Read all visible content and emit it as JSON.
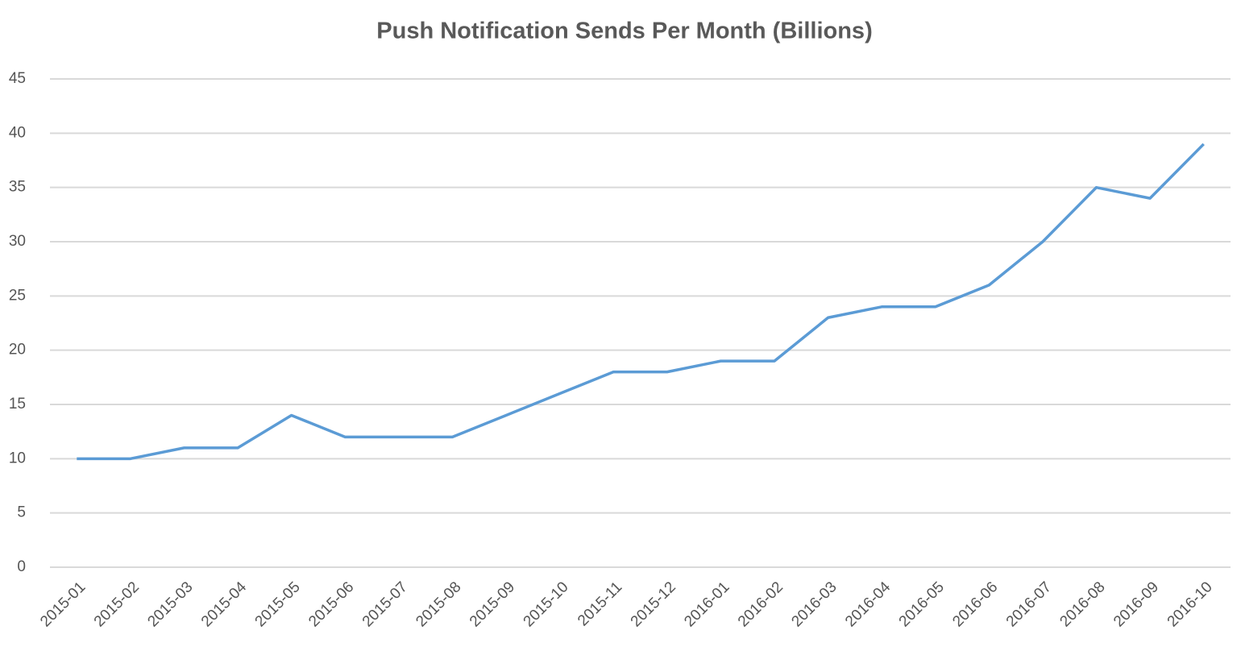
{
  "chart_data": {
    "type": "line",
    "title": "Push Notification Sends Per Month (Billions)",
    "categories": [
      "2015-01",
      "2015-02",
      "2015-03",
      "2015-04",
      "2015-05",
      "2015-06",
      "2015-07",
      "2015-08",
      "2015-09",
      "2015-10",
      "2015-11",
      "2015-12",
      "2016-01",
      "2016-02",
      "2016-03",
      "2016-04",
      "2016-05",
      "2016-06",
      "2016-07",
      "2016-08",
      "2016-09",
      "2016-10"
    ],
    "values": [
      10,
      10,
      11,
      11,
      14,
      12,
      12,
      12,
      14,
      16,
      18,
      18,
      19,
      19,
      23,
      24,
      24,
      26,
      30,
      35,
      34,
      39
    ],
    "color": "#5b9bd5",
    "ylim": [
      0,
      45
    ],
    "yticks": [
      0,
      5,
      10,
      15,
      20,
      25,
      30,
      35,
      40,
      45
    ],
    "grid": true
  }
}
